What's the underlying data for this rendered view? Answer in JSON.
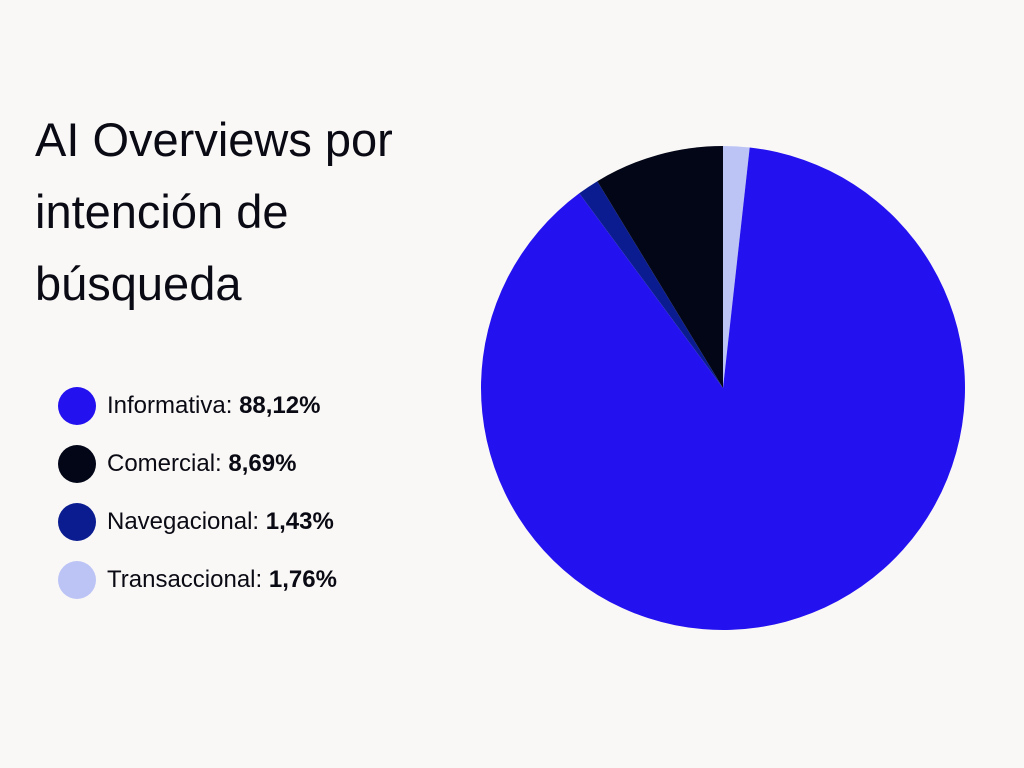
{
  "chart_data": {
    "type": "pie",
    "title": "AI Overviews por intención de búsqueda",
    "categories": [
      "Informativa",
      "Comercial",
      "Navegacional",
      "Transaccional"
    ],
    "values": [
      88.12,
      8.69,
      1.43,
      1.76
    ],
    "value_labels": [
      "88,12%",
      "8,69%",
      "1,43%",
      "1,76%"
    ],
    "colors": [
      "#2311f0",
      "#020617",
      "#0a1c90",
      "#bcc4f6"
    ],
    "slice_order": [
      "Transaccional",
      "Informativa",
      "Navegacional",
      "Comercial"
    ],
    "start": "top",
    "direction": "clockwise",
    "legend_position": "left"
  },
  "legend": [
    {
      "label": "Informativa:",
      "value": "88,12%",
      "color": "#2311f0"
    },
    {
      "label": "Comercial:",
      "value": "8,69%",
      "color": "#020617"
    },
    {
      "label": "Navegacional:",
      "value": "1,43%",
      "color": "#0a1c90"
    },
    {
      "label": "Transaccional:",
      "value": "1,76%",
      "color": "#bcc4f6"
    }
  ]
}
